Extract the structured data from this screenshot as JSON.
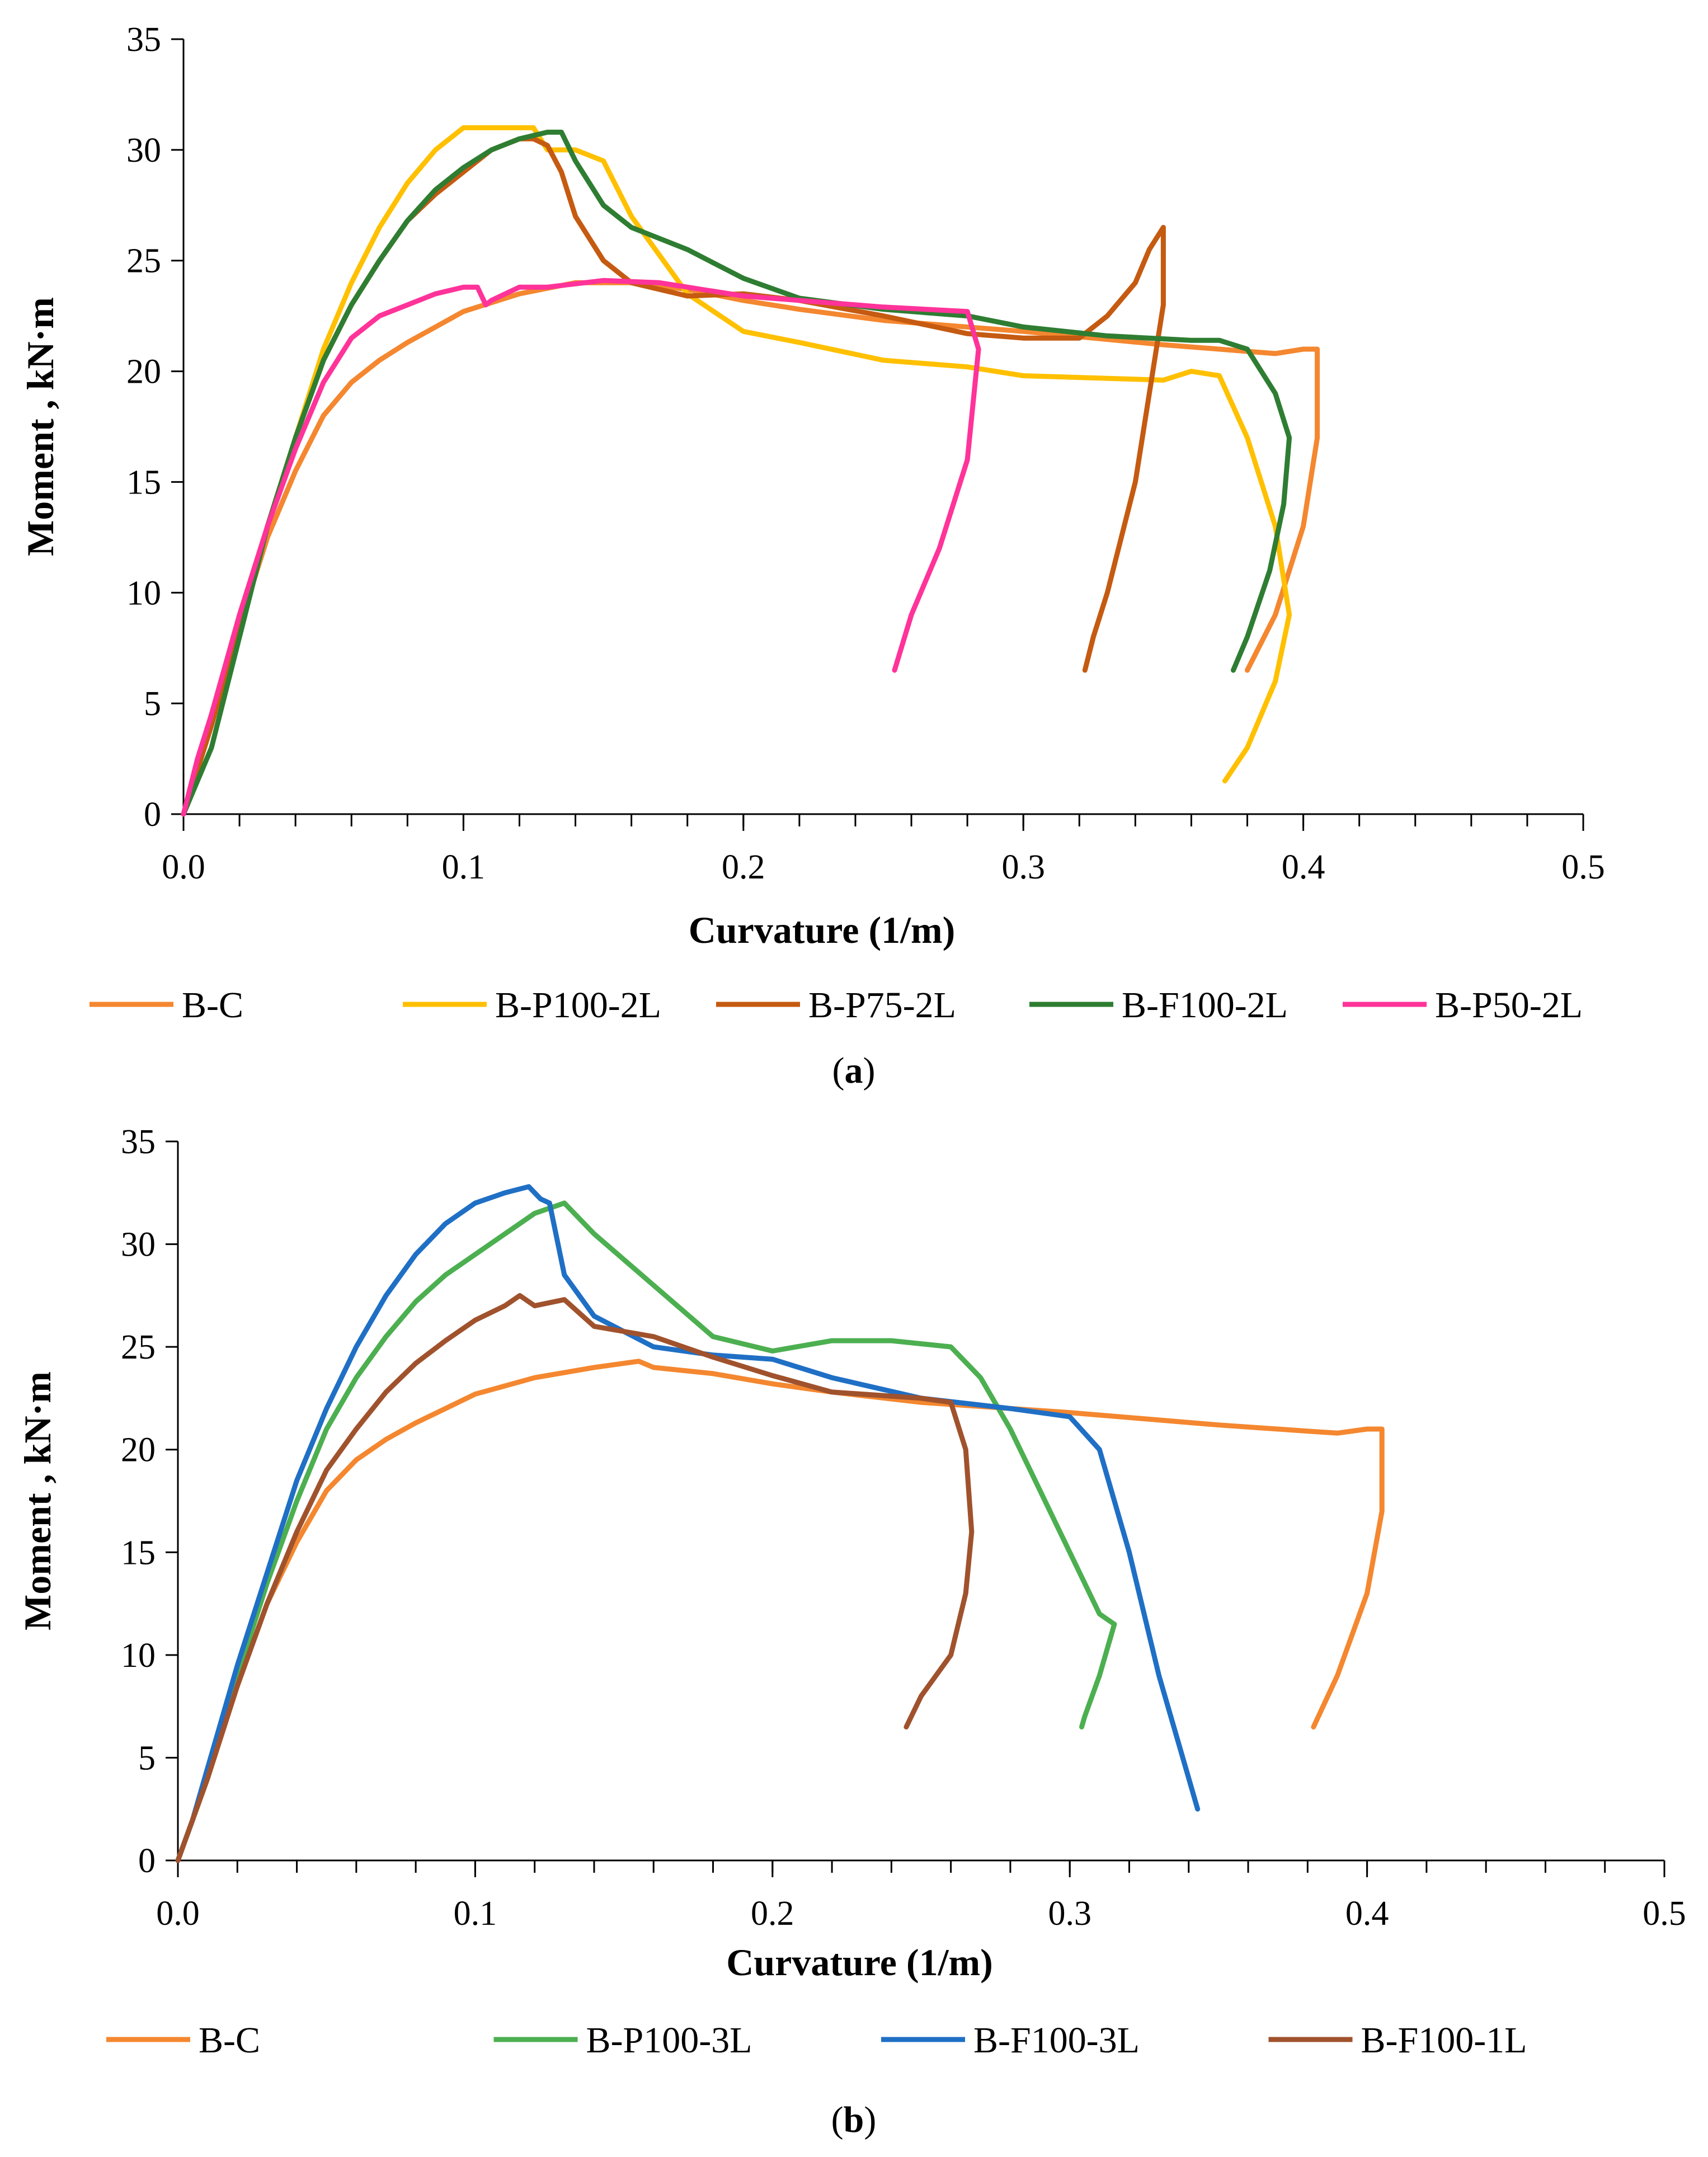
{
  "chart_data": [
    {
      "panel_id": "a",
      "type": "line",
      "caption_open": "(",
      "caption_letter": "a",
      "caption_close": ")",
      "xlabel": "Curvature (1/m)",
      "ylabel": "Moment , kN·m",
      "xlim": [
        0,
        0.5
      ],
      "ylim": [
        0,
        35
      ],
      "xticks": [
        0,
        0.1,
        0.2,
        0.3,
        0.4,
        0.5
      ],
      "xtick_labels": [
        "0.0",
        "0.1",
        "0.2",
        "0.3",
        "0.4",
        "0.5"
      ],
      "yticks": [
        0,
        5,
        10,
        15,
        20,
        25,
        30,
        35
      ],
      "ytick_labels": [
        "0",
        "5",
        "10",
        "15",
        "20",
        "25",
        "30",
        "35"
      ],
      "legend_position": "bottom",
      "series": [
        {
          "name": "B-C",
          "color": "#F4872F",
          "x": [
            0,
            0.005,
            0.01,
            0.02,
            0.03,
            0.04,
            0.05,
            0.06,
            0.07,
            0.08,
            0.09,
            0.1,
            0.12,
            0.14,
            0.16,
            0.18,
            0.2,
            0.22,
            0.25,
            0.3,
            0.35,
            0.38,
            0.39,
            0.4,
            0.405,
            0.405,
            0.4,
            0.39,
            0.38
          ],
          "y": [
            0,
            2,
            4.5,
            8.5,
            12.5,
            15.5,
            18,
            19.5,
            20.5,
            21.3,
            22,
            22.7,
            23.5,
            24,
            24,
            23.7,
            23.2,
            22.8,
            22.3,
            21.8,
            21.2,
            20.9,
            20.8,
            21,
            21,
            17,
            13,
            9,
            6.5
          ]
        },
        {
          "name": "B-P100-2L",
          "color": "#FFC000",
          "x": [
            0,
            0.005,
            0.01,
            0.02,
            0.03,
            0.04,
            0.05,
            0.06,
            0.07,
            0.08,
            0.09,
            0.1,
            0.11,
            0.12,
            0.125,
            0.13,
            0.14,
            0.15,
            0.16,
            0.18,
            0.2,
            0.22,
            0.25,
            0.28,
            0.3,
            0.35,
            0.36,
            0.37,
            0.38,
            0.39,
            0.395,
            0.39,
            0.38,
            0.372
          ],
          "y": [
            0,
            2,
            4.5,
            9,
            13,
            17,
            21,
            24,
            26.5,
            28.5,
            30,
            31,
            31,
            31,
            31,
            30,
            30,
            29.5,
            27,
            23.5,
            21.8,
            21.3,
            20.5,
            20.2,
            19.8,
            19.6,
            20,
            19.8,
            17,
            13,
            9,
            6,
            3,
            1.5
          ]
        },
        {
          "name": "B-P75-2L",
          "color": "#C55A11",
          "x": [
            0,
            0.005,
            0.01,
            0.02,
            0.03,
            0.04,
            0.05,
            0.06,
            0.07,
            0.08,
            0.09,
            0.1,
            0.11,
            0.12,
            0.125,
            0.13,
            0.135,
            0.14,
            0.15,
            0.16,
            0.18,
            0.2,
            0.22,
            0.25,
            0.28,
            0.3,
            0.32,
            0.33,
            0.34,
            0.345,
            0.35,
            0.35,
            0.345,
            0.34,
            0.33,
            0.325,
            0.322
          ],
          "y": [
            0,
            2,
            4,
            8.5,
            13,
            17,
            20.5,
            23,
            25,
            26.8,
            28,
            29,
            30,
            30.5,
            30.5,
            30.2,
            29,
            27,
            25,
            24,
            23.4,
            23.5,
            23.2,
            22.5,
            21.7,
            21.5,
            21.5,
            22.5,
            24,
            25.5,
            26.5,
            23,
            19,
            15,
            10,
            8,
            6.5
          ]
        },
        {
          "name": "B-F100-2L",
          "color": "#2E7D32",
          "x": [
            0,
            0.005,
            0.01,
            0.02,
            0.03,
            0.04,
            0.05,
            0.06,
            0.07,
            0.08,
            0.09,
            0.1,
            0.11,
            0.12,
            0.13,
            0.135,
            0.14,
            0.15,
            0.16,
            0.18,
            0.2,
            0.22,
            0.25,
            0.28,
            0.3,
            0.33,
            0.36,
            0.37,
            0.38,
            0.39,
            0.395,
            0.393,
            0.388,
            0.38,
            0.375
          ],
          "y": [
            0,
            1.5,
            3,
            8,
            13,
            17,
            20.5,
            23,
            25,
            26.8,
            28.2,
            29.2,
            30,
            30.5,
            30.8,
            30.8,
            29.5,
            27.5,
            26.5,
            25.5,
            24.2,
            23.3,
            22.8,
            22.5,
            22,
            21.6,
            21.4,
            21.4,
            21,
            19,
            17,
            14,
            11,
            8,
            6.5
          ]
        },
        {
          "name": "B-P50-2L",
          "color": "#FF3399",
          "x": [
            0,
            0.005,
            0.01,
            0.02,
            0.03,
            0.04,
            0.05,
            0.06,
            0.07,
            0.08,
            0.09,
            0.1,
            0.105,
            0.108,
            0.11,
            0.12,
            0.13,
            0.15,
            0.17,
            0.2,
            0.25,
            0.28,
            0.284,
            0.28,
            0.27,
            0.26,
            0.254
          ],
          "y": [
            0,
            2.5,
            4.5,
            9,
            13,
            16.5,
            19.5,
            21.5,
            22.5,
            23,
            23.5,
            23.8,
            23.8,
            23,
            23.2,
            23.8,
            23.8,
            24.1,
            24,
            23.4,
            22.9,
            22.7,
            21,
            16,
            12,
            9,
            6.5
          ]
        }
      ]
    },
    {
      "panel_id": "b",
      "type": "line",
      "caption_open": "(",
      "caption_letter": "b",
      "caption_close": ")",
      "xlabel": "Curvature (1/m)",
      "ylabel": "Moment , kN·m",
      "xlim": [
        0,
        0.5
      ],
      "ylim": [
        0,
        35
      ],
      "xticks": [
        0,
        0.1,
        0.2,
        0.3,
        0.4,
        0.5
      ],
      "xtick_labels": [
        "0.0",
        "0.1",
        "0.2",
        "0.3",
        "0.4",
        "0.5"
      ],
      "yticks": [
        0,
        5,
        10,
        15,
        20,
        25,
        30,
        35
      ],
      "ytick_labels": [
        "0",
        "5",
        "10",
        "15",
        "20",
        "25",
        "30",
        "35"
      ],
      "legend_position": "bottom",
      "series": [
        {
          "name": "B-C",
          "color": "#F4872F",
          "x": [
            0,
            0.005,
            0.01,
            0.02,
            0.03,
            0.04,
            0.05,
            0.06,
            0.07,
            0.08,
            0.09,
            0.1,
            0.12,
            0.14,
            0.155,
            0.16,
            0.18,
            0.2,
            0.22,
            0.25,
            0.3,
            0.35,
            0.38,
            0.39,
            0.4,
            0.405,
            0.405,
            0.4,
            0.39,
            0.382
          ],
          "y": [
            0,
            2,
            4.5,
            8.5,
            12.5,
            15.5,
            18,
            19.5,
            20.5,
            21.3,
            22,
            22.7,
            23.5,
            24,
            24.3,
            24,
            23.7,
            23.2,
            22.8,
            22.3,
            21.8,
            21.2,
            20.9,
            20.8,
            21,
            21,
            17,
            13,
            9,
            6.5
          ]
        },
        {
          "name": "B-P100-3L",
          "color": "#4CAF50",
          "x": [
            0,
            0.005,
            0.01,
            0.02,
            0.03,
            0.04,
            0.05,
            0.06,
            0.07,
            0.08,
            0.09,
            0.1,
            0.11,
            0.12,
            0.13,
            0.14,
            0.16,
            0.18,
            0.2,
            0.22,
            0.24,
            0.26,
            0.27,
            0.28,
            0.29,
            0.3,
            0.31,
            0.315,
            0.31,
            0.305,
            0.304
          ],
          "y": [
            0,
            2,
            4,
            9,
            13.5,
            17.5,
            21,
            23.5,
            25.5,
            27.2,
            28.5,
            29.5,
            30.5,
            31.5,
            32,
            30.5,
            28,
            25.5,
            24.8,
            25.3,
            25.3,
            25,
            23.5,
            21,
            18,
            15,
            12,
            11.5,
            9,
            7,
            6.5
          ]
        },
        {
          "name": "B-F100-3L",
          "color": "#1F6FC5",
          "x": [
            0,
            0.005,
            0.01,
            0.02,
            0.03,
            0.04,
            0.05,
            0.06,
            0.07,
            0.08,
            0.09,
            0.1,
            0.11,
            0.118,
            0.122,
            0.125,
            0.13,
            0.14,
            0.16,
            0.18,
            0.2,
            0.22,
            0.25,
            0.28,
            0.3,
            0.31,
            0.32,
            0.33,
            0.34,
            0.343
          ],
          "y": [
            0,
            2,
            4.5,
            9.5,
            14,
            18.5,
            22,
            25,
            27.5,
            29.5,
            31,
            32,
            32.5,
            32.8,
            32.2,
            32,
            28.5,
            26.5,
            25,
            24.6,
            24.4,
            23.5,
            22.5,
            22,
            21.6,
            20,
            15,
            9,
            4,
            2.5
          ]
        },
        {
          "name": "B-F100-1L",
          "color": "#A0522D",
          "x": [
            0,
            0.005,
            0.01,
            0.02,
            0.03,
            0.04,
            0.05,
            0.06,
            0.07,
            0.08,
            0.09,
            0.1,
            0.11,
            0.115,
            0.12,
            0.13,
            0.14,
            0.16,
            0.18,
            0.2,
            0.22,
            0.25,
            0.26,
            0.265,
            0.267,
            0.265,
            0.26,
            0.25,
            0.245
          ],
          "y": [
            0,
            2,
            4,
            8.5,
            12.5,
            16,
            19,
            21,
            22.8,
            24.2,
            25.3,
            26.3,
            27,
            27.5,
            27,
            27.3,
            26,
            25.5,
            24.5,
            23.6,
            22.8,
            22.5,
            22.3,
            20,
            16,
            13,
            10,
            8,
            6.5
          ]
        }
      ]
    }
  ]
}
